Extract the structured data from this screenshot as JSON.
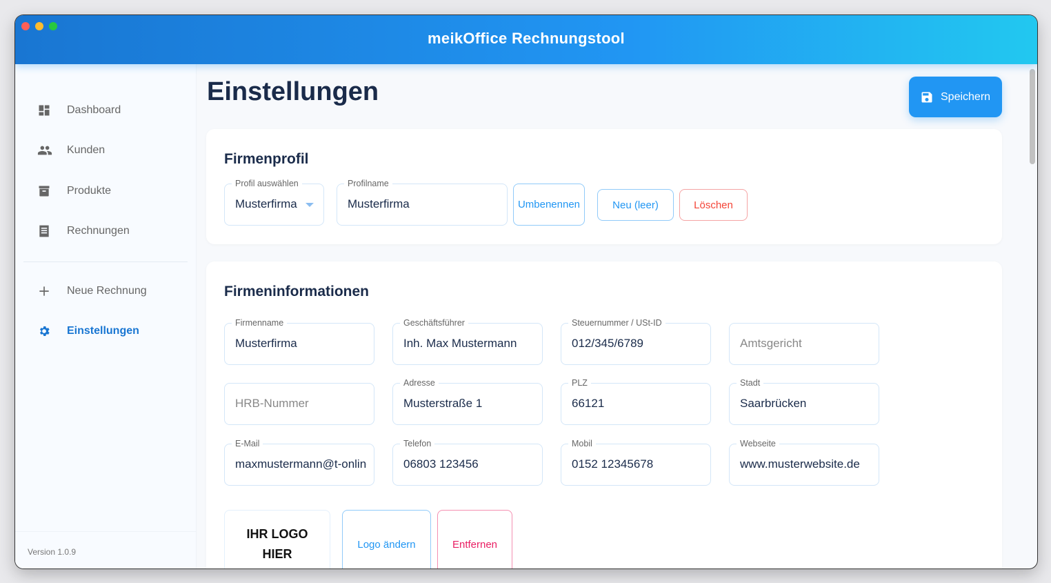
{
  "app": {
    "title": "meikOffice Rechnungstool",
    "version": "Version 1.0.9"
  },
  "sidebar": {
    "items": [
      {
        "label": "Dashboard",
        "icon": "dashboard-icon"
      },
      {
        "label": "Kunden",
        "icon": "people-icon"
      },
      {
        "label": "Produkte",
        "icon": "archive-icon"
      },
      {
        "label": "Rechnungen",
        "icon": "receipt-icon"
      },
      {
        "label": "Neue Rechnung",
        "icon": "plus-icon"
      },
      {
        "label": "Einstellungen",
        "icon": "gear-icon",
        "active": true
      }
    ]
  },
  "page": {
    "title": "Einstellungen",
    "save_label": "Speichern"
  },
  "profile": {
    "title": "Firmenprofil",
    "select_label": "Profil auswählen",
    "select_value": "Musterfirma",
    "name_label": "Profilname",
    "name_value": "Musterfirma",
    "rename": "Umbenennen",
    "new": "Neu (leer)",
    "delete": "Löschen"
  },
  "company": {
    "title": "Firmeninformationen",
    "fields": [
      {
        "label": "Firmenname",
        "value": "Musterfirma"
      },
      {
        "label": "Geschäftsführer",
        "value": "Inh. Max Mustermann"
      },
      {
        "label": "Steuernummer / USt-ID",
        "value": "012/345/6789"
      },
      {
        "label": "",
        "placeholder": "Amtsgericht"
      },
      {
        "label": "",
        "placeholder": "HRB-Nummer"
      },
      {
        "label": "Adresse",
        "value": "Musterstraße 1"
      },
      {
        "label": "PLZ",
        "value": "66121"
      },
      {
        "label": "Stadt",
        "value": "Saarbrücken"
      },
      {
        "label": "E-Mail",
        "value": "maxmustermann@t-online.de"
      },
      {
        "label": "Telefon",
        "value": "06803 123456"
      },
      {
        "label": "Mobil",
        "value": "0152 12345678"
      },
      {
        "label": "Webseite",
        "value": "www.musterwebsite.de"
      }
    ],
    "logo_placeholder": "IHR LOGO HIER",
    "logo_change": "Logo ändern",
    "logo_remove": "Entfernen"
  },
  "colors": {
    "primary": "#2196f3",
    "danger": "#f44336",
    "remove": "#e91e63"
  }
}
